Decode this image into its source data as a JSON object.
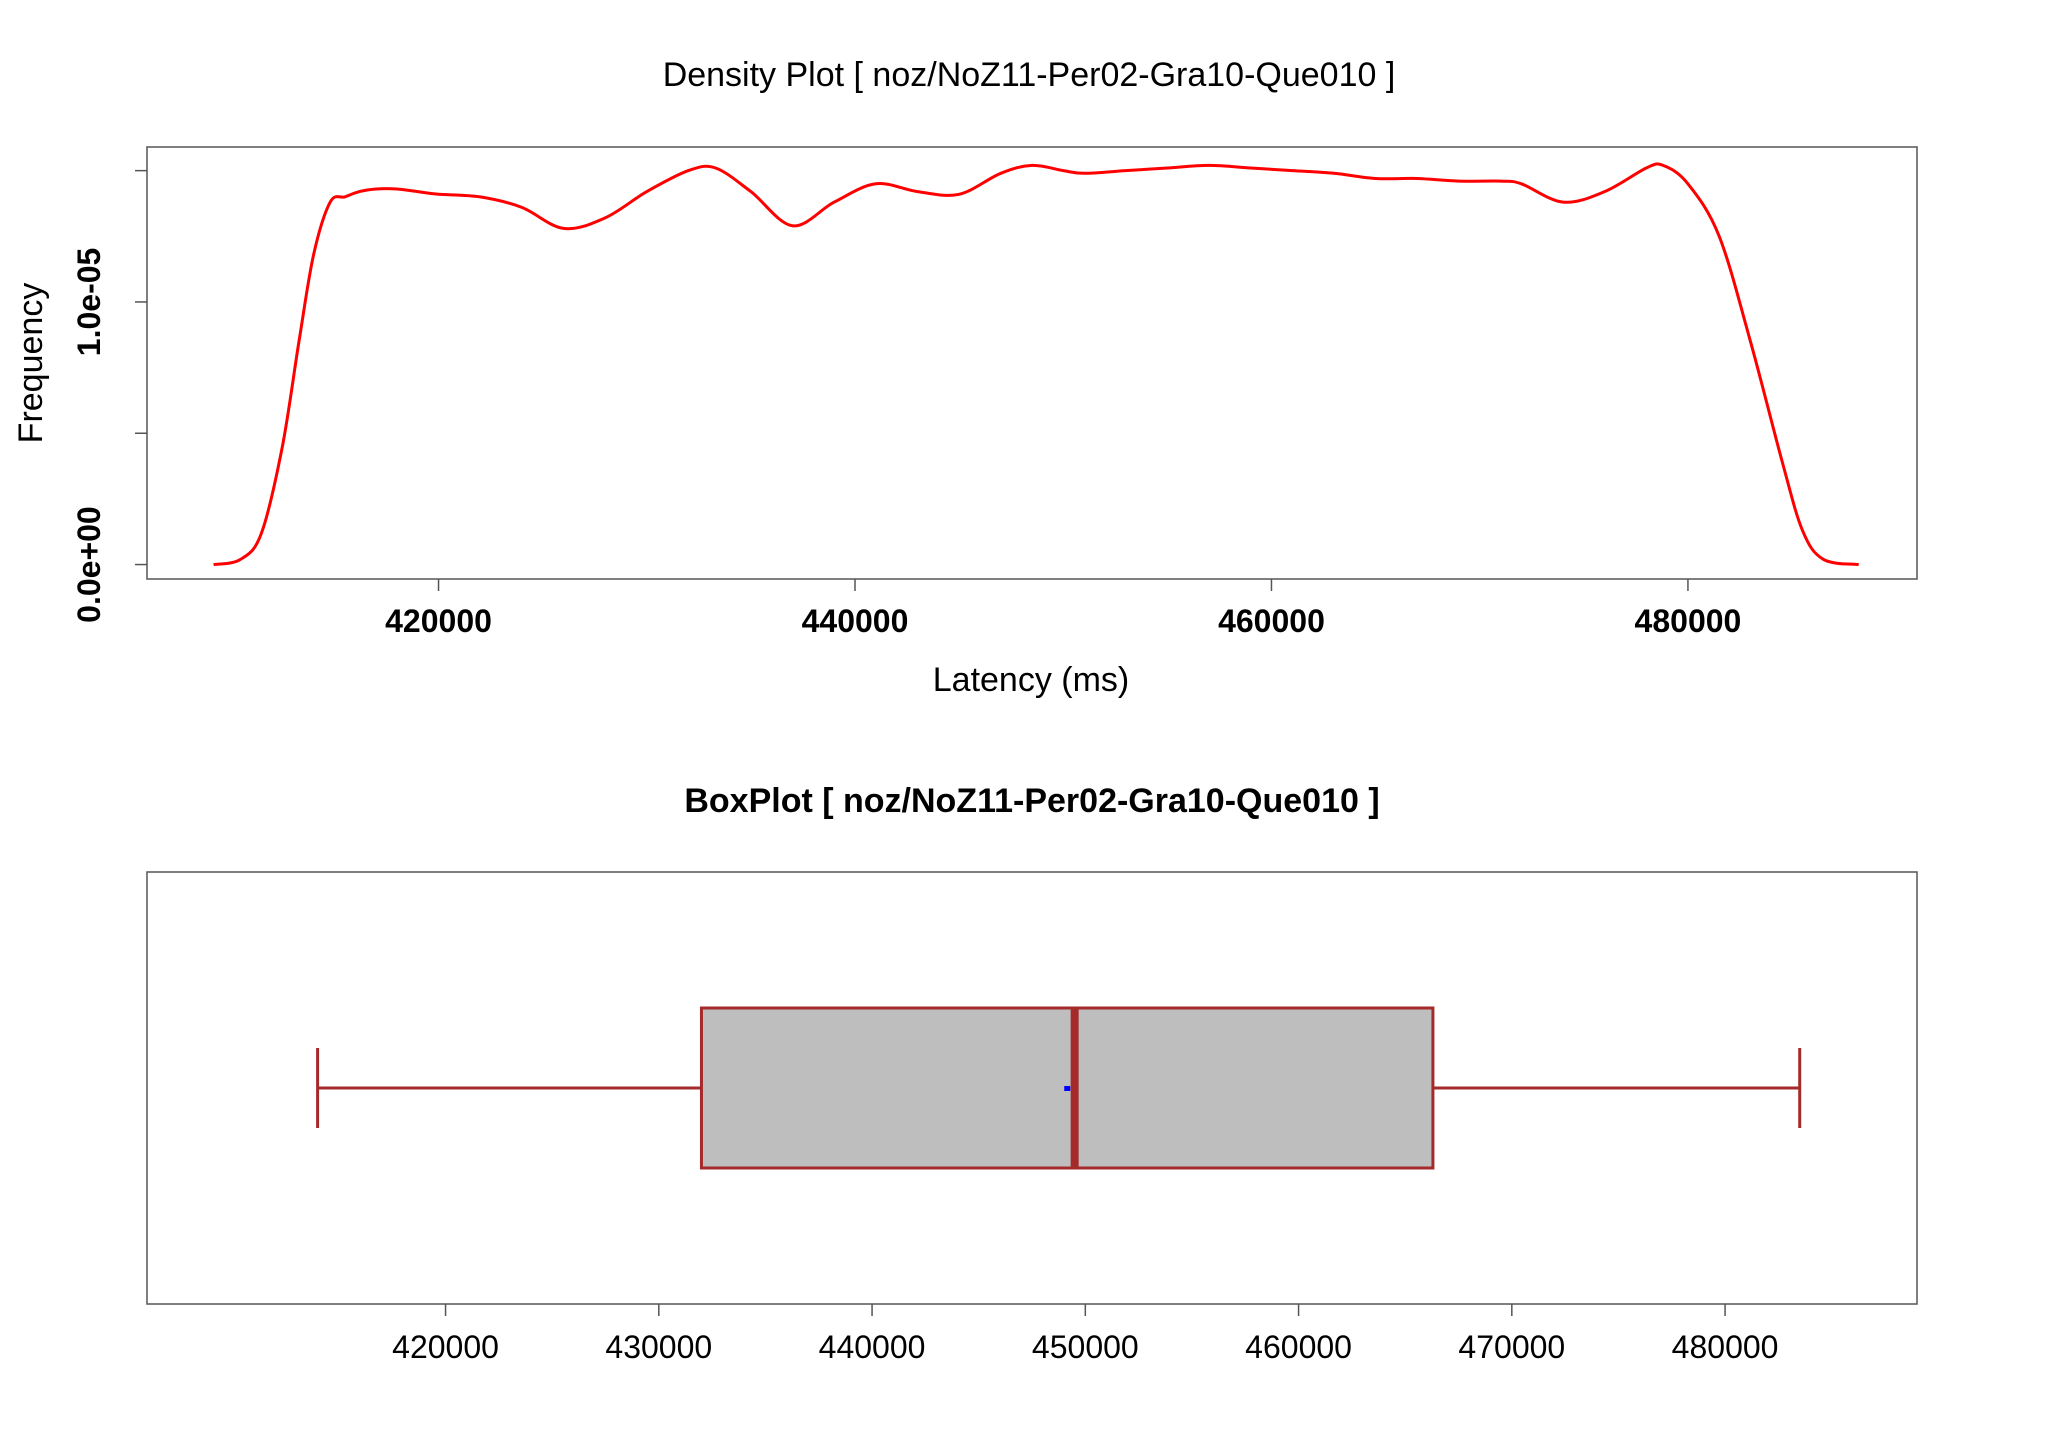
{
  "chart_data": [
    {
      "type": "line",
      "title": "Density Plot [ noz/NoZ11-Per02-Gra10-Que010 ]",
      "xlabel": "Latency (ms)",
      "ylabel": "Frequency",
      "xlim": [
        406000,
        491000
      ],
      "ylim": [
        -5.5e-07,
        1.59e-05
      ],
      "x_ticks": [
        420000,
        440000,
        460000,
        480000
      ],
      "x_tick_labels": [
        "420000",
        "440000",
        "460000",
        "480000"
      ],
      "y_ticks": [
        0,
        5e-06,
        1e-05,
        1.5e-05
      ],
      "y_tick_labels": [
        "0.0e+00",
        "",
        "1.0e-05",
        ""
      ],
      "grid": false,
      "series": [
        {
          "color": "#ff0000",
          "x": [
            409200,
            410500,
            411500,
            412500,
            413300,
            414000,
            414800,
            415500,
            416200,
            417000,
            418000,
            419000,
            420000,
            422000,
            424000,
            426000,
            428000,
            430000,
            432000,
            433300,
            435000,
            437000,
            439000,
            441000,
            443000,
            445000,
            447000,
            448500,
            450000,
            451000,
            453000,
            455000,
            457000,
            459000,
            461000,
            463000,
            465000,
            467000,
            469000,
            471000,
            472000,
            474000,
            476000,
            478000,
            478800,
            480000,
            481500,
            483000,
            484500,
            485500,
            486500,
            488200
          ],
          "y": [
            0.0,
            2e-07,
            1.2e-06,
            4.5e-06,
            8.5e-06,
            1.18e-05,
            1.38e-05,
            1.4e-05,
            1.42e-05,
            1.43e-05,
            1.43e-05,
            1.42e-05,
            1.41e-05,
            1.4e-05,
            1.36e-05,
            1.28e-05,
            1.32e-05,
            1.42e-05,
            1.5e-05,
            1.51e-05,
            1.42e-05,
            1.29e-05,
            1.38e-05,
            1.45e-05,
            1.42e-05,
            1.41e-05,
            1.49e-05,
            1.52e-05,
            1.5e-05,
            1.49e-05,
            1.5e-05,
            1.51e-05,
            1.52e-05,
            1.51e-05,
            1.5e-05,
            1.49e-05,
            1.47e-05,
            1.47e-05,
            1.46e-05,
            1.46e-05,
            1.45e-05,
            1.38e-05,
            1.42e-05,
            1.51e-05,
            1.52e-05,
            1.45e-05,
            1.25e-05,
            8.5e-06,
            4e-06,
            1.3e-06,
            2e-07,
            0.0
          ]
        }
      ]
    },
    {
      "type": "box",
      "title": "BoxPlot [ noz/NoZ11-Per02-Gra10-Que010 ]",
      "xlim": [
        406000,
        489000
      ],
      "x_ticks": [
        420000,
        430000,
        440000,
        450000,
        460000,
        470000,
        480000
      ],
      "x_tick_labels": [
        "420000",
        "430000",
        "440000",
        "450000",
        "460000",
        "470000",
        "480000"
      ],
      "whisker_low": 414000,
      "q1": 432000,
      "median": 449500,
      "mean": 449200,
      "q3": 466300,
      "whisker_high": 483500,
      "box_color": "#bebebe",
      "line_color": "#a52a2a",
      "mean_color": "#0000ff",
      "grid": false
    }
  ]
}
